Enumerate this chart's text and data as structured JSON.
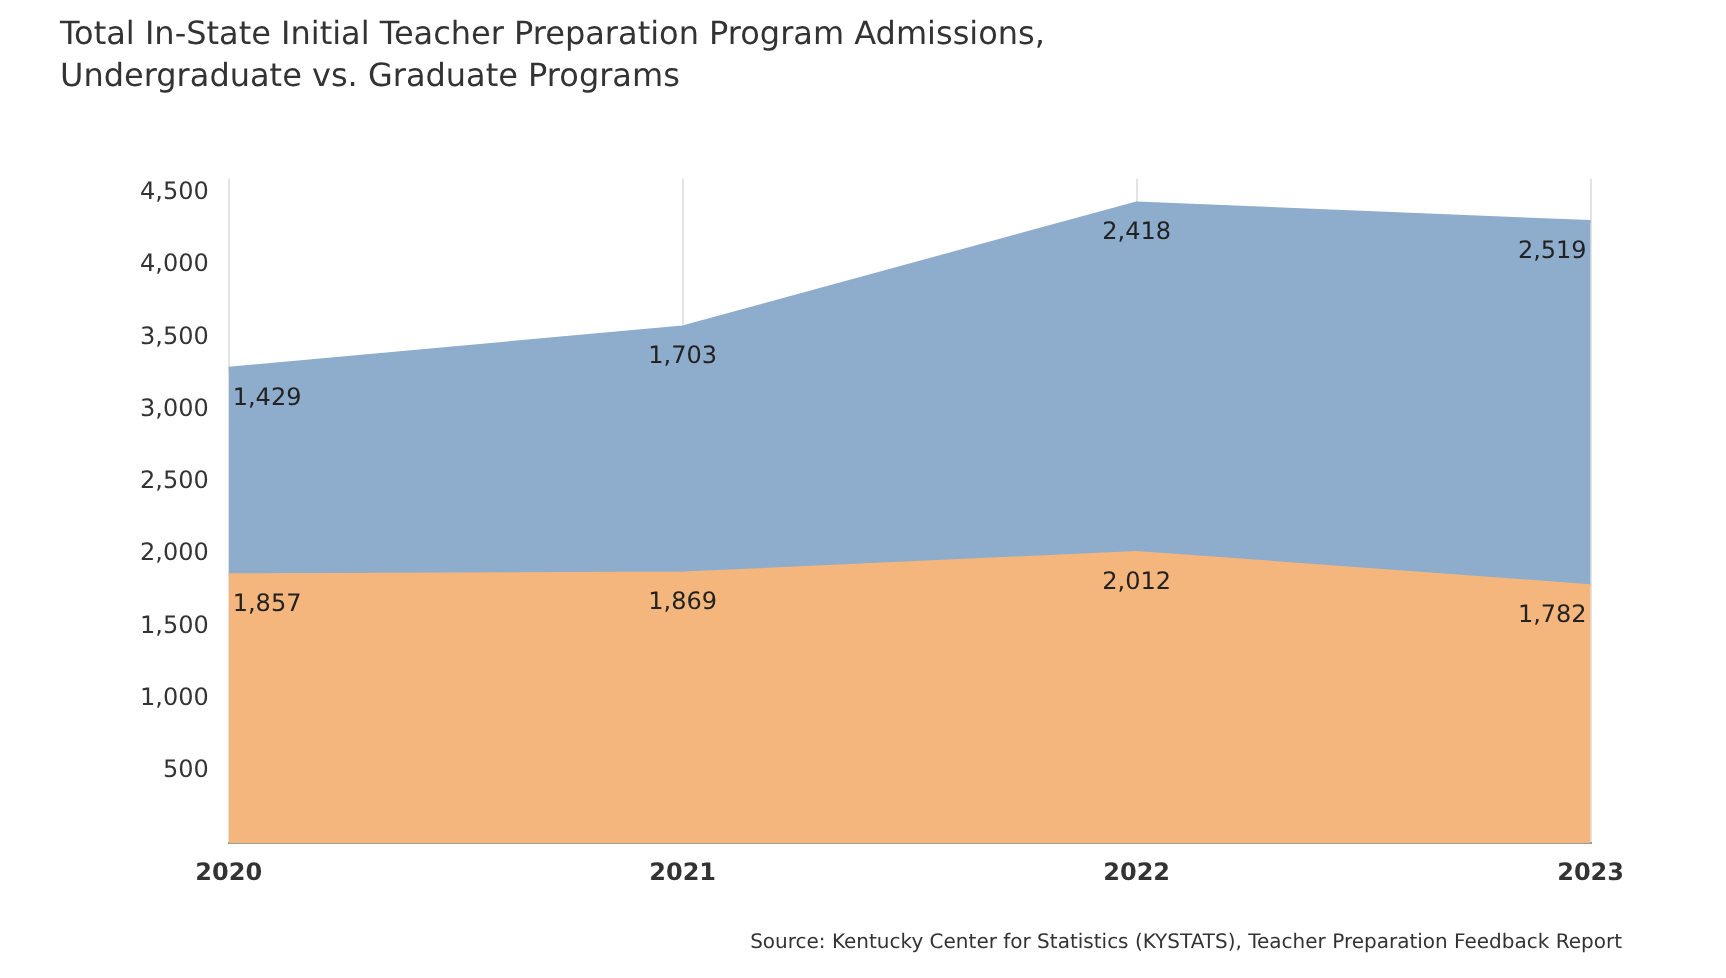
{
  "chart_data": {
    "type": "area",
    "title": "Total In-State Initial Teacher Preparation Program Admissions,",
    "subtitle": "Undergraduate vs. Graduate Programs",
    "categories": [
      "2020",
      "2021",
      "2022",
      "2023"
    ],
    "series": [
      {
        "color": "#f4b67c",
        "values": [
          1857,
          1869,
          2012,
          1782
        ],
        "value_labels": [
          "1,857",
          "1,869",
          "2,012",
          "1,782"
        ]
      },
      {
        "color": "#8eaccb",
        "values": [
          1429,
          1703,
          2418,
          2519
        ],
        "value_labels": [
          "1,429",
          "1,703",
          "2,418",
          "2,519"
        ]
      }
    ],
    "stacked": true,
    "ylim": [
      0,
      4600
    ],
    "yticks": [
      {
        "value": 500,
        "label": "500"
      },
      {
        "value": 1000,
        "label": "1,000"
      },
      {
        "value": 1500,
        "label": "1,500"
      },
      {
        "value": 2000,
        "label": "2,000"
      },
      {
        "value": 2500,
        "label": "2,500"
      },
      {
        "value": 3000,
        "label": "3,000"
      },
      {
        "value": 3500,
        "label": "3,500"
      },
      {
        "value": 4000,
        "label": "4,000"
      },
      {
        "value": 4500,
        "label": "4,500"
      }
    ],
    "grid": "x",
    "legend": false,
    "annotations": [
      "Source: Kentucky Center for Statistics (KYSTATS), Teacher Preparation Feedback Report"
    ]
  }
}
